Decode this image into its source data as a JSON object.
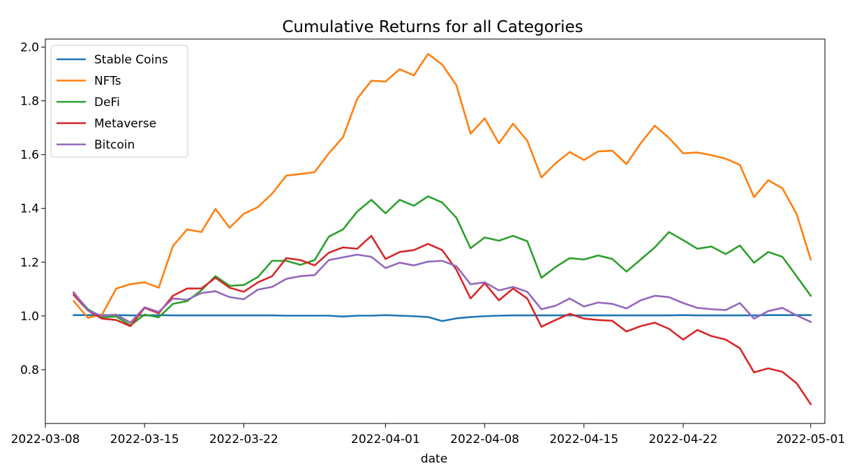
{
  "chart_data": {
    "type": "line",
    "title": "Cumulative Returns for all Categories",
    "xlabel": "date",
    "ylabel": "",
    "ylim": [
      0.6,
      2.03
    ],
    "xlim": [
      "2022-03-08",
      "2022-05-02"
    ],
    "yticks": [
      0.8,
      1.0,
      1.2,
      1.4,
      1.6,
      1.8,
      2.0
    ],
    "ytick_labels": [
      "0.8",
      "1.0",
      "1.2",
      "1.4",
      "1.6",
      "1.8",
      "2.0"
    ],
    "xticks": [
      "2022-03-08",
      "2022-03-15",
      "2022-03-22",
      "2022-04-01",
      "2022-04-08",
      "2022-04-15",
      "2022-04-22",
      "2022-05-01"
    ],
    "xtick_labels": [
      "2022-03-08",
      "2022-03-15",
      "2022-03-22",
      "2022-04-01",
      "2022-04-08",
      "2022-04-15",
      "2022-04-22",
      "2022-05-01"
    ],
    "grid": false,
    "legend_position": "top-left",
    "x": [
      "2022-03-10",
      "2022-03-11",
      "2022-03-12",
      "2022-03-13",
      "2022-03-14",
      "2022-03-15",
      "2022-03-16",
      "2022-03-17",
      "2022-03-18",
      "2022-03-19",
      "2022-03-20",
      "2022-03-21",
      "2022-03-22",
      "2022-03-23",
      "2022-03-24",
      "2022-03-25",
      "2022-03-26",
      "2022-03-27",
      "2022-03-28",
      "2022-03-29",
      "2022-03-30",
      "2022-03-31",
      "2022-04-01",
      "2022-04-02",
      "2022-04-03",
      "2022-04-04",
      "2022-04-05",
      "2022-04-06",
      "2022-04-07",
      "2022-04-08",
      "2022-04-09",
      "2022-04-10",
      "2022-04-11",
      "2022-04-12",
      "2022-04-13",
      "2022-04-14",
      "2022-04-15",
      "2022-04-16",
      "2022-04-17",
      "2022-04-18",
      "2022-04-19",
      "2022-04-20",
      "2022-04-21",
      "2022-04-22",
      "2022-04-23",
      "2022-04-24",
      "2022-04-25",
      "2022-04-26",
      "2022-04-27",
      "2022-04-28",
      "2022-04-29",
      "2022-04-30",
      "2022-05-01"
    ],
    "series": [
      {
        "name": "Stable Coins",
        "color": "#1f77b4",
        "values": [
          1.003,
          1.003,
          1.003,
          1.003,
          1.002,
          1.002,
          1.003,
          1.002,
          1.002,
          1.002,
          1.002,
          1.002,
          1.002,
          1.002,
          1.002,
          1.001,
          1.001,
          1.001,
          1.001,
          0.998,
          1.001,
          1.001,
          1.003,
          1.001,
          0.999,
          0.996,
          0.981,
          0.991,
          0.996,
          0.999,
          1.001,
          1.002,
          1.002,
          1.002,
          1.002,
          1.002,
          1.002,
          1.002,
          1.002,
          1.002,
          1.002,
          1.002,
          1.002,
          1.003,
          1.002,
          1.002,
          1.002,
          1.002,
          1.002,
          1.003,
          1.003,
          1.003,
          1.003
        ]
      },
      {
        "name": "NFTs",
        "color": "#ff7f0e",
        "values": [
          1.055,
          0.993,
          1.005,
          1.102,
          1.118,
          1.125,
          1.105,
          1.26,
          1.322,
          1.312,
          1.398,
          1.328,
          1.38,
          1.405,
          1.455,
          1.522,
          1.528,
          1.535,
          1.605,
          1.665,
          1.808,
          1.875,
          1.872,
          1.918,
          1.895,
          1.975,
          1.935,
          1.858,
          1.678,
          1.735,
          1.642,
          1.715,
          1.652,
          1.515,
          1.568,
          1.61,
          1.58,
          1.612,
          1.615,
          1.565,
          1.642,
          1.708,
          1.662,
          1.605,
          1.608,
          1.598,
          1.585,
          1.562,
          1.442,
          1.505,
          1.475,
          1.38,
          1.21
        ]
      },
      {
        "name": "DeFi",
        "color": "#2ca02c",
        "values": [
          1.085,
          1.025,
          0.995,
          0.998,
          0.965,
          1.005,
          0.995,
          1.045,
          1.055,
          1.095,
          1.148,
          1.112,
          1.115,
          1.145,
          1.205,
          1.205,
          1.19,
          1.208,
          1.295,
          1.322,
          1.388,
          1.432,
          1.382,
          1.432,
          1.41,
          1.445,
          1.422,
          1.365,
          1.252,
          1.292,
          1.28,
          1.298,
          1.278,
          1.142,
          1.182,
          1.215,
          1.21,
          1.225,
          1.212,
          1.165,
          1.21,
          1.255,
          1.312,
          1.282,
          1.25,
          1.258,
          1.23,
          1.262,
          1.198,
          1.238,
          1.22,
          1.148,
          1.075
        ]
      },
      {
        "name": "Metaverse",
        "color": "#d62728",
        "values": [
          1.078,
          1.02,
          0.99,
          0.985,
          0.962,
          1.03,
          1.01,
          1.075,
          1.102,
          1.102,
          1.142,
          1.105,
          1.09,
          1.125,
          1.148,
          1.215,
          1.208,
          1.188,
          1.235,
          1.255,
          1.25,
          1.298,
          1.212,
          1.238,
          1.245,
          1.268,
          1.245,
          1.172,
          1.065,
          1.122,
          1.058,
          1.102,
          1.065,
          0.96,
          0.985,
          1.008,
          0.99,
          0.985,
          0.982,
          0.942,
          0.962,
          0.975,
          0.952,
          0.912,
          0.948,
          0.925,
          0.912,
          0.88,
          0.79,
          0.805,
          0.792,
          0.75,
          0.672
        ]
      },
      {
        "name": "Bitcoin",
        "color": "#9467bd",
        "values": [
          1.088,
          1.02,
          1.0,
          1.005,
          0.975,
          1.032,
          1.015,
          1.065,
          1.06,
          1.085,
          1.092,
          1.07,
          1.062,
          1.098,
          1.108,
          1.138,
          1.148,
          1.152,
          1.208,
          1.218,
          1.228,
          1.22,
          1.178,
          1.198,
          1.188,
          1.202,
          1.205,
          1.185,
          1.118,
          1.125,
          1.095,
          1.108,
          1.09,
          1.025,
          1.038,
          1.065,
          1.035,
          1.05,
          1.045,
          1.028,
          1.058,
          1.075,
          1.07,
          1.048,
          1.03,
          1.025,
          1.022,
          1.048,
          0.99,
          1.018,
          1.03,
          1.002,
          0.978
        ]
      }
    ]
  }
}
